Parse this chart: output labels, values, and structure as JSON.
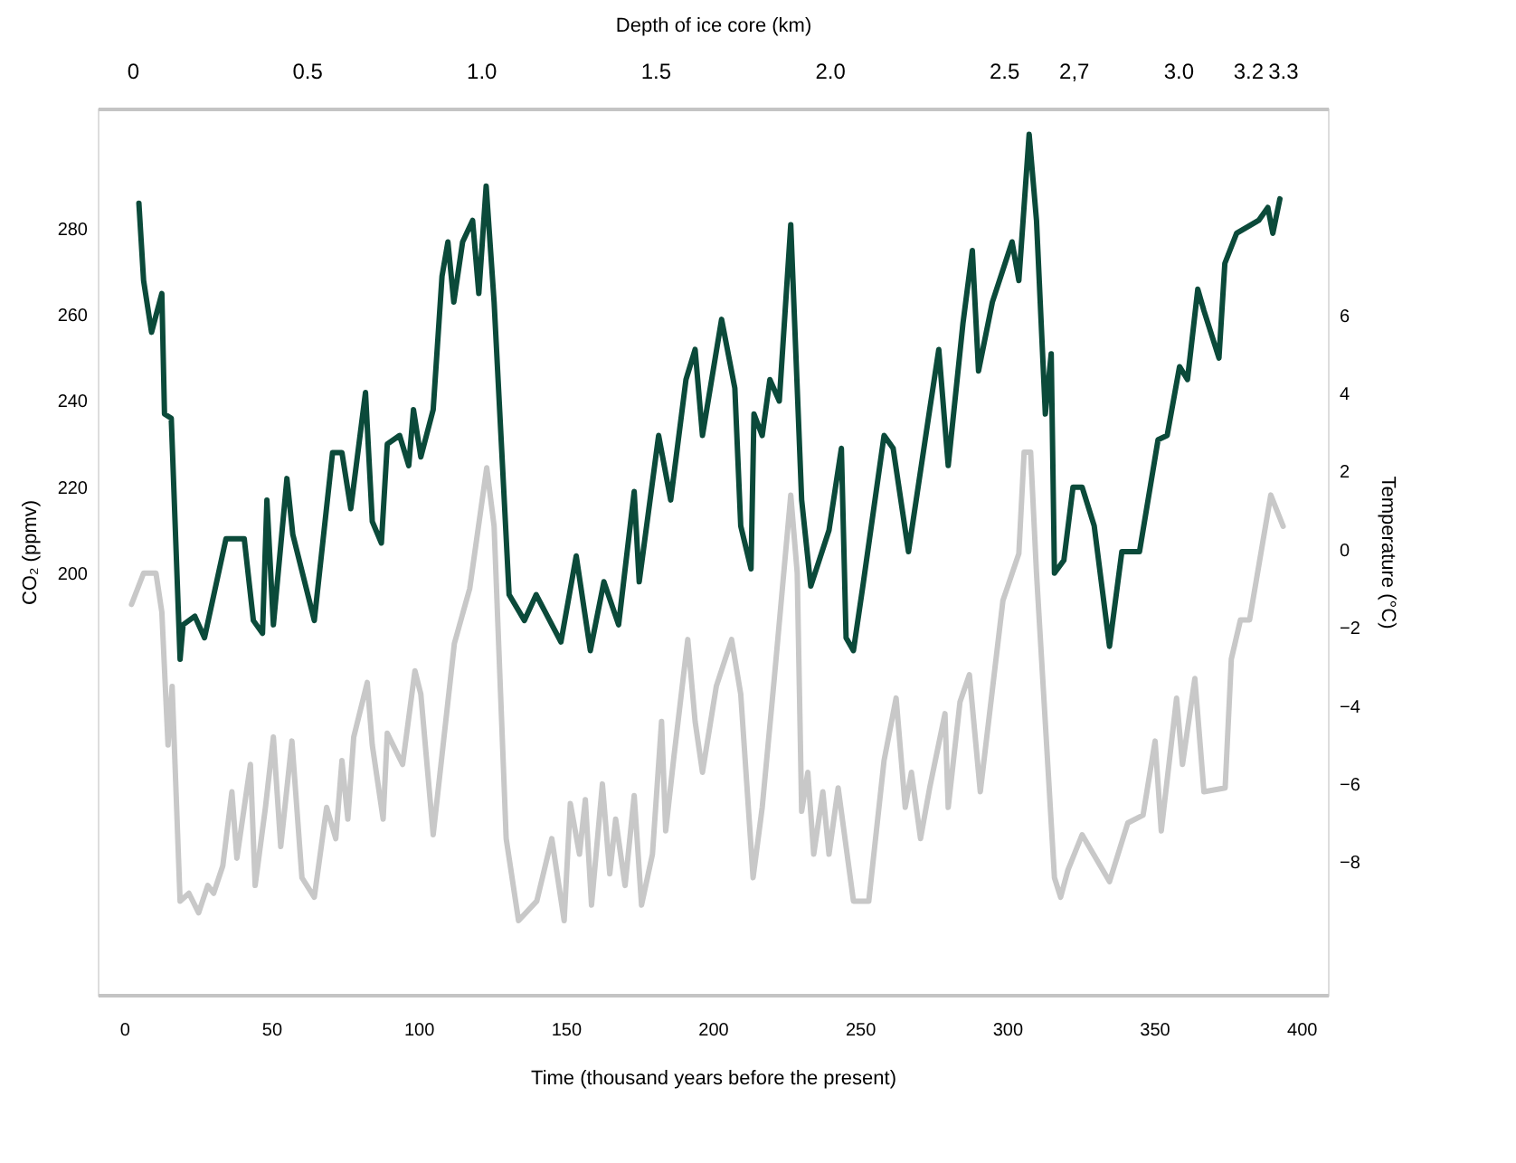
{
  "chart_data": {
    "type": "line",
    "xlabel": "Time (thousand years before the present)",
    "ylabel": "CO₂ (ppmv)",
    "y2label": "Temperature (°C)",
    "x2label": "Depth of ice core (km)",
    "xlim": [
      -9,
      409
    ],
    "xticks": [
      0,
      50,
      100,
      150,
      200,
      250,
      300,
      350,
      400
    ],
    "x2lim": [
      -0.1,
      3.43
    ],
    "x2ticks": [
      {
        "value": 0,
        "label": "0"
      },
      0.5,
      {
        "value": 1,
        "label": "1.0"
      },
      1.5,
      {
        "value": 2,
        "label": "2.0"
      },
      2.5,
      {
        "value": 2.7,
        "label": "2,7"
      },
      {
        "value": 3,
        "label": "3.0"
      },
      3.2,
      3.3
    ],
    "ylim": [
      102,
      308
    ],
    "yticks": [
      200,
      220,
      240,
      260,
      280
    ],
    "y2lim": [
      -11.4,
      11.3
    ],
    "y2ticks": [
      6,
      4,
      2,
      0,
      -2,
      -4,
      -6,
      -8
    ],
    "line_style": "solid",
    "series": [
      {
        "color": "#0b4a3a",
        "axis": "y",
        "x": [
          5,
          6.6,
          9.3,
          12.8,
          13.7,
          16,
          19,
          20,
          24,
          27.3,
          34.6,
          40.8,
          43.9,
          47,
          48.5,
          50.7,
          55.3,
          57.3,
          64.6,
          70.8,
          74,
          77,
          82,
          84.3,
          87.4,
          89.4,
          93.6,
          96.7,
          98.3,
          100.8,
          105,
          108,
          110,
          112,
          115,
          118.4,
          120.5,
          123,
          125.7,
          130.8,
          136,
          140,
          148.4,
          153.6,
          158.4,
          163,
          168,
          173.3,
          175,
          181.6,
          185.7,
          190.9,
          194,
          196.5,
          203,
          207.5,
          209.5,
          213,
          214,
          216.8,
          219.4,
          222.6,
          226.5,
          230.2,
          233.3,
          239.5,
          243.7,
          245.3,
          247.8,
          251,
          258.2,
          261.3,
          266.5,
          273.7,
          276.8,
          280,
          285,
          288.2,
          290.3,
          295,
          301.7,
          304,
          307.5,
          310,
          313,
          315,
          316.1,
          319.3,
          322.4,
          325.5,
          329.6,
          334.8,
          339,
          345,
          351.3,
          354.4,
          358.6,
          361.3,
          364.8,
          366.9,
          372,
          374,
          378,
          385.5,
          388.6,
          390.3,
          392.7
        ],
        "values": [
          286,
          268,
          256,
          265,
          237,
          236,
          180,
          188,
          190,
          185,
          208,
          208,
          189,
          186,
          217,
          188,
          222,
          209,
          189,
          228,
          228,
          215,
          242,
          212,
          207,
          230,
          232,
          225,
          238,
          227,
          238,
          269,
          277,
          263,
          277,
          282,
          265,
          290,
          263,
          195,
          189,
          195,
          184,
          204,
          182,
          198,
          188,
          219,
          198,
          232,
          217,
          245,
          252,
          232,
          259,
          243,
          211,
          201,
          237,
          232,
          245,
          240,
          281,
          217,
          197,
          210,
          229,
          185,
          182,
          197,
          232,
          229,
          205,
          238,
          252,
          225,
          258,
          275,
          247,
          263,
          277,
          268,
          302,
          282,
          237,
          251,
          200,
          203,
          220,
          220,
          211,
          183,
          205,
          205,
          231,
          232,
          248,
          245,
          266,
          261,
          250,
          272,
          279,
          282,
          285,
          279,
          287
        ]
      },
      {
        "color": "#c8c8c8",
        "axis": "y2",
        "x": [
          2.5,
          6.6,
          10.8,
          12.8,
          14.9,
          16.3,
          19,
          22,
          25.3,
          28.4,
          30.4,
          33.5,
          36.6,
          38.3,
          42.9,
          44.5,
          48,
          50.7,
          53.2,
          57,
          60.4,
          64.6,
          68.8,
          71.9,
          74,
          76,
          78,
          82.6,
          84.3,
          88,
          89.4,
          94.6,
          98.8,
          100.8,
          105,
          112.2,
          117.4,
          123.2,
          125.7,
          129.8,
          134,
          140.2,
          145.3,
          149.5,
          151.6,
          154.7,
          156.7,
          158.8,
          162.5,
          165,
          167,
          170.2,
          173.3,
          175.8,
          179.5,
          182.6,
          184,
          186.8,
          191.5,
          194,
          196.5,
          201.2,
          206.4,
          209.5,
          213.7,
          216.8,
          220.9,
          226.5,
          228.7,
          230.2,
          232.3,
          234.3,
          237.4,
          239.5,
          242.6,
          247.8,
          253,
          258.2,
          262.3,
          265.4,
          267.5,
          270.6,
          273.7,
          278.9,
          280,
          284,
          287.2,
          290.9,
          298.6,
          304,
          305.8,
          308,
          310,
          316.1,
          318.2,
          320.7,
          325.5,
          334.8,
          341,
          346.2,
          350.3,
          352.4,
          357.6,
          359.6,
          363.8,
          366.9,
          374.1,
          376.2,
          379.3,
          382.4,
          389.6,
          393.8
        ],
        "values": [
          -1.4,
          -0.6,
          -0.6,
          -1.6,
          -5.0,
          -3.5,
          -9.0,
          -8.8,
          -9.3,
          -8.6,
          -8.8,
          -8.1,
          -6.2,
          -7.9,
          -5.5,
          -8.6,
          -6.6,
          -4.8,
          -7.6,
          -4.9,
          -8.4,
          -8.9,
          -6.6,
          -7.4,
          -5.4,
          -6.9,
          -4.8,
          -3.4,
          -5.0,
          -6.9,
          -4.7,
          -5.5,
          -3.1,
          -3.7,
          -7.3,
          -2.4,
          -1.0,
          2.1,
          0.6,
          -7.4,
          -9.5,
          -9.0,
          -7.4,
          -9.5,
          -6.5,
          -7.8,
          -6.4,
          -9.1,
          -6.0,
          -8.3,
          -6.9,
          -8.6,
          -6.3,
          -9.1,
          -7.8,
          -4.4,
          -7.2,
          -5.3,
          -2.3,
          -4.4,
          -5.7,
          -3.5,
          -2.3,
          -3.7,
          -8.4,
          -6.6,
          -3.3,
          1.4,
          -0.6,
          -6.7,
          -5.7,
          -7.8,
          -6.2,
          -7.8,
          -6.1,
          -9.0,
          -9.0,
          -5.4,
          -3.8,
          -6.6,
          -5.7,
          -7.4,
          -6.1,
          -4.2,
          -6.6,
          -3.9,
          -3.2,
          -6.2,
          -1.3,
          -0.1,
          2.5,
          2.5,
          -0.6,
          -8.4,
          -8.9,
          -8.2,
          -7.3,
          -8.5,
          -7.0,
          -6.8,
          -4.9,
          -7.2,
          -3.8,
          -5.5,
          -3.3,
          -6.2,
          -6.1,
          -2.8,
          -1.8,
          -1.8,
          1.4,
          0.6
        ]
      }
    ]
  }
}
